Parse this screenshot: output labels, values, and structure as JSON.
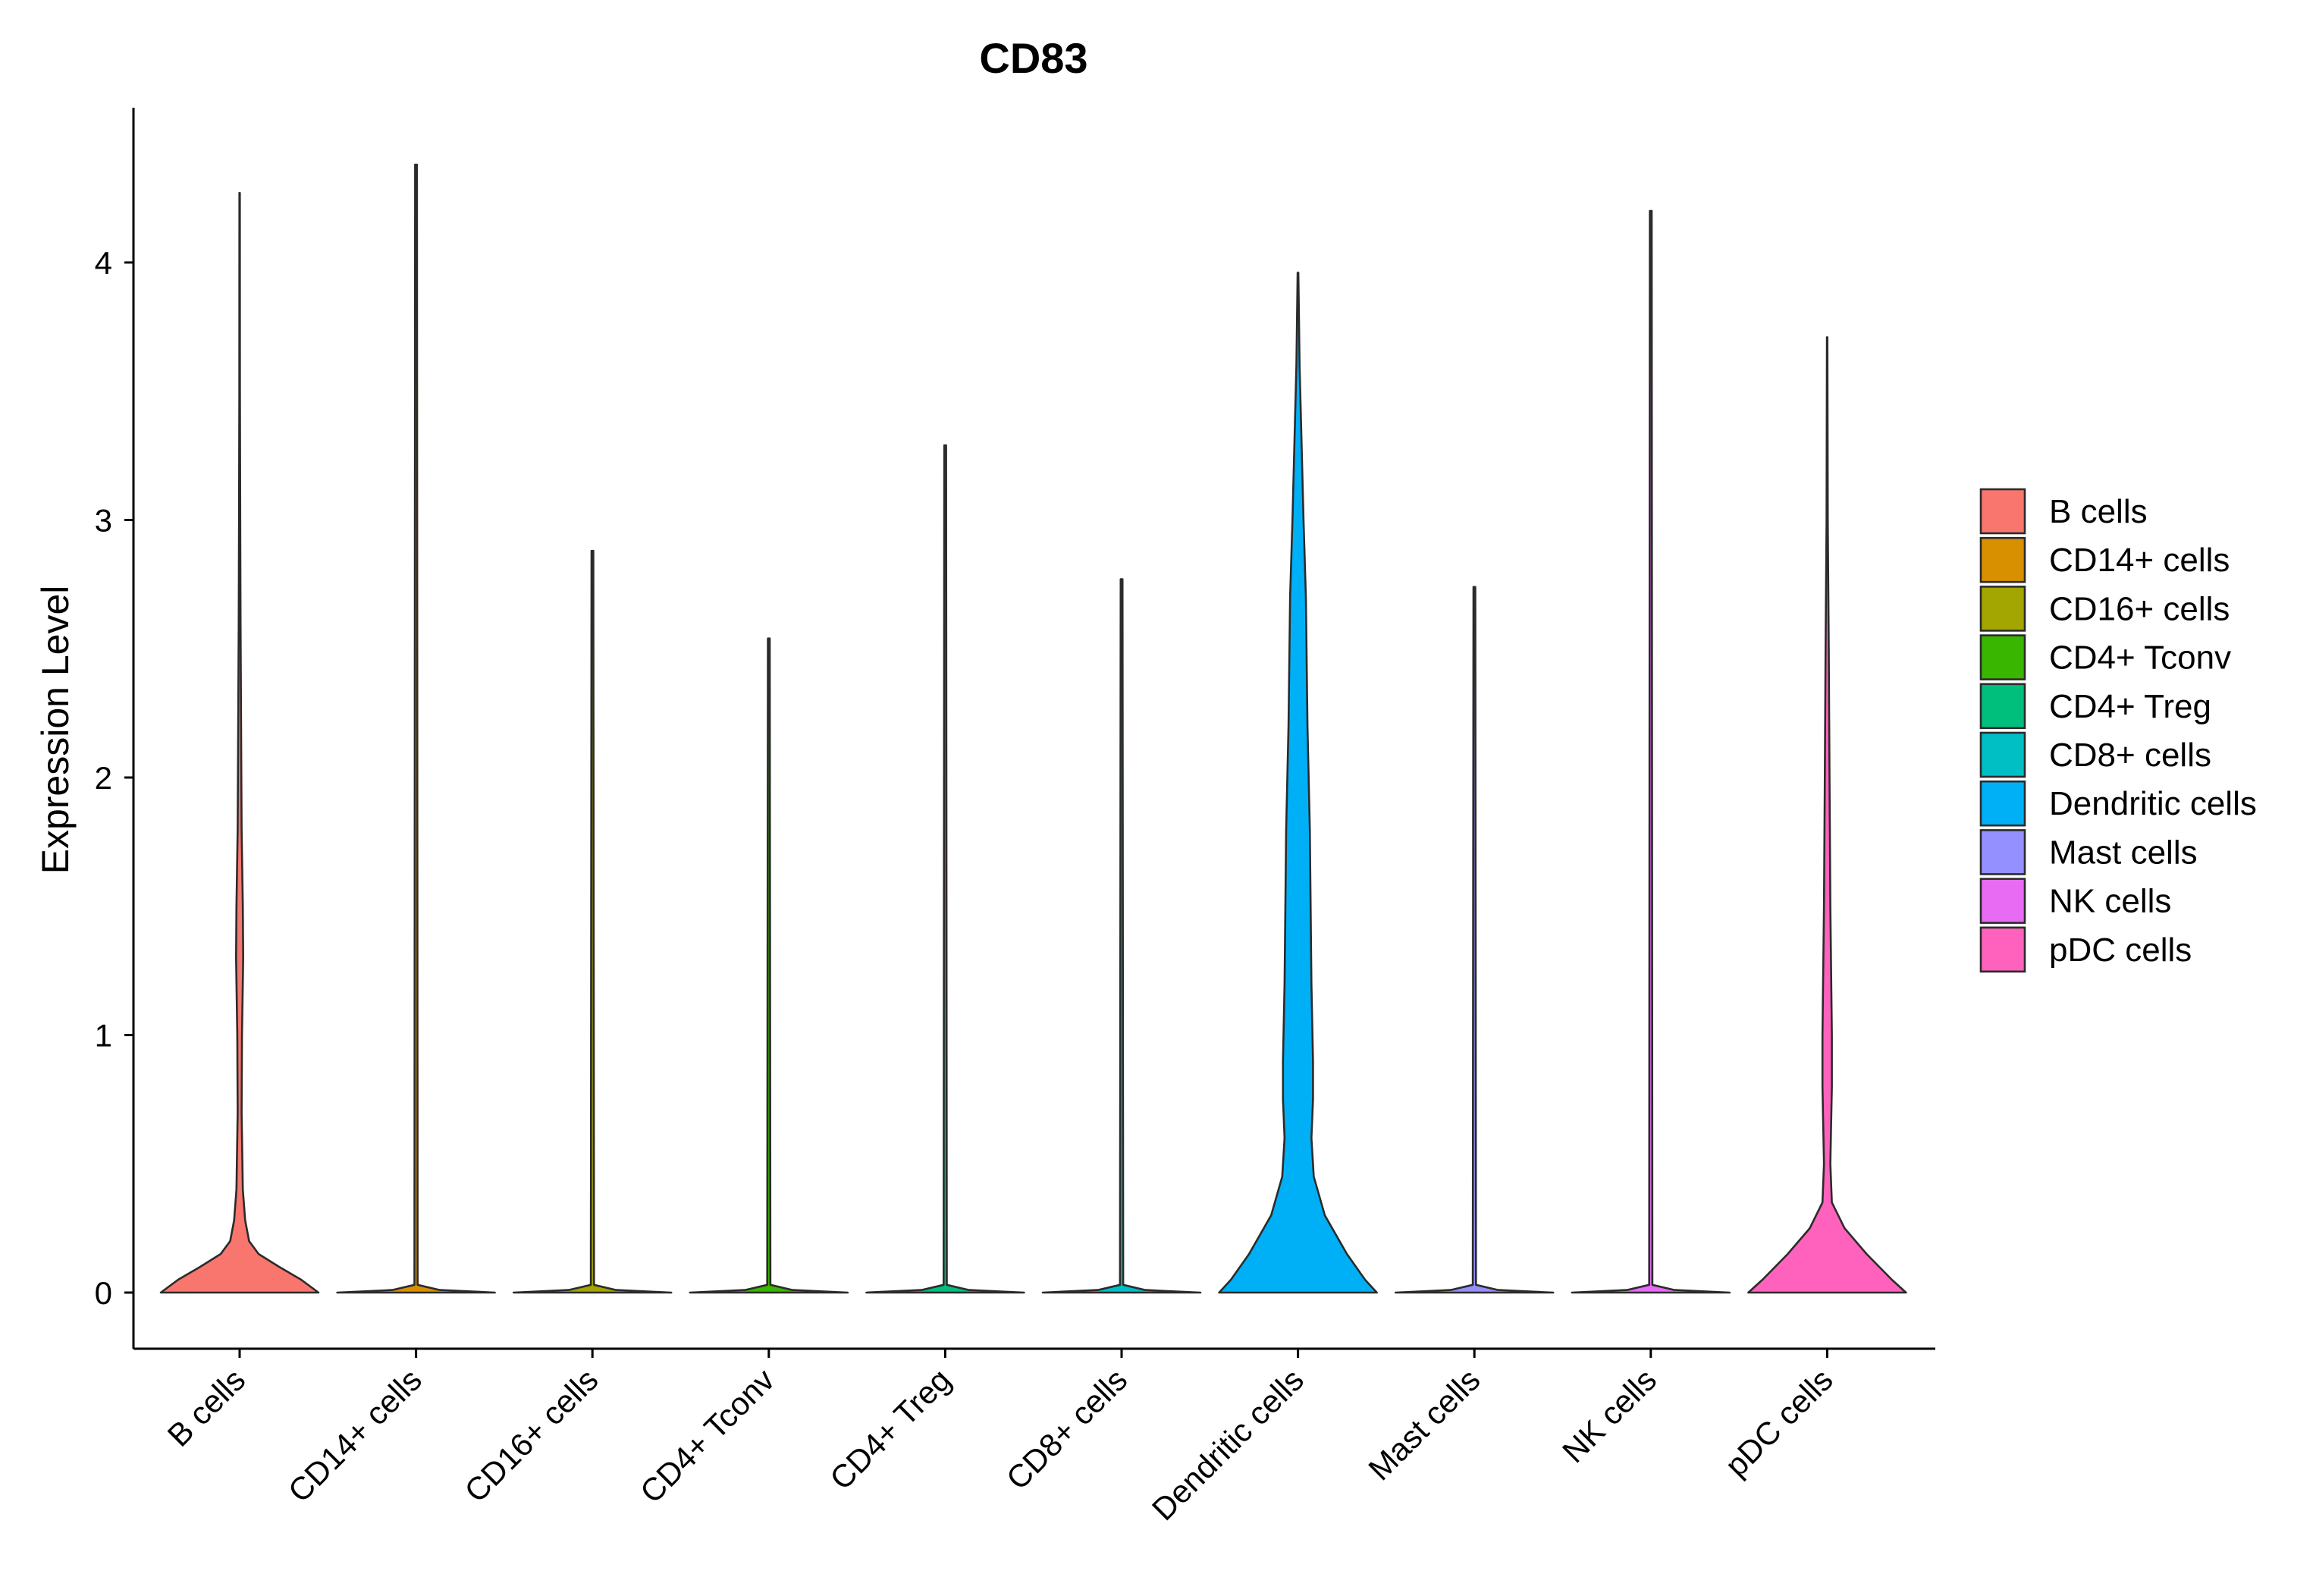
{
  "chart_data": {
    "type": "violin",
    "title": "CD83",
    "xlabel": "",
    "ylabel": "Expression Level",
    "ylim": [
      -0.22,
      4.6
    ],
    "yticks": [
      0,
      1,
      2,
      3,
      4
    ],
    "grid": false,
    "legend_position": "right",
    "categories": [
      "B cells",
      "CD14+ cells",
      "CD16+ cells",
      "CD4+ Tconv",
      "CD4+ Treg",
      "CD8+ cells",
      "Dendritic cells",
      "Mast cells",
      "NK cells",
      "pDC cells"
    ],
    "colors": [
      "#F8766D",
      "#D89000",
      "#A3A500",
      "#39B600",
      "#00BF7D",
      "#00BFC4",
      "#00B0F6",
      "#9590FF",
      "#E76BF3",
      "#FF62BC"
    ],
    "max_values": [
      4.27,
      4.38,
      2.88,
      2.54,
      3.29,
      2.77,
      3.96,
      2.74,
      4.2,
      3.71
    ],
    "density_profiles": [
      [
        [
          0,
          1.0
        ],
        [
          0.05,
          0.78
        ],
        [
          0.1,
          0.5
        ],
        [
          0.15,
          0.24
        ],
        [
          0.2,
          0.12
        ],
        [
          0.28,
          0.07
        ],
        [
          0.4,
          0.04
        ],
        [
          0.7,
          0.025
        ],
        [
          1.0,
          0.03
        ],
        [
          1.3,
          0.045
        ],
        [
          1.5,
          0.04
        ],
        [
          1.8,
          0.025
        ],
        [
          2.2,
          0.018
        ],
        [
          2.6,
          0.012
        ],
        [
          3.0,
          0.008
        ],
        [
          3.5,
          0.004
        ],
        [
          4.27,
          0.003
        ]
      ],
      [
        [
          0,
          1.0
        ],
        [
          0.01,
          0.3
        ],
        [
          0.03,
          0.02
        ],
        [
          4.38,
          0.012
        ]
      ],
      [
        [
          0,
          1.0
        ],
        [
          0.01,
          0.3
        ],
        [
          0.03,
          0.02
        ],
        [
          2.88,
          0.012
        ]
      ],
      [
        [
          0,
          1.0
        ],
        [
          0.01,
          0.3
        ],
        [
          0.03,
          0.02
        ],
        [
          2.54,
          0.012
        ]
      ],
      [
        [
          0,
          1.0
        ],
        [
          0.01,
          0.3
        ],
        [
          0.03,
          0.02
        ],
        [
          3.29,
          0.012
        ]
      ],
      [
        [
          0,
          1.0
        ],
        [
          0.01,
          0.3
        ],
        [
          0.03,
          0.02
        ],
        [
          2.77,
          0.012
        ]
      ],
      [
        [
          0,
          1.0
        ],
        [
          0.05,
          0.85
        ],
        [
          0.15,
          0.62
        ],
        [
          0.3,
          0.34
        ],
        [
          0.45,
          0.2
        ],
        [
          0.6,
          0.17
        ],
        [
          0.75,
          0.19
        ],
        [
          0.9,
          0.19
        ],
        [
          1.2,
          0.17
        ],
        [
          1.8,
          0.15
        ],
        [
          2.2,
          0.12
        ],
        [
          2.7,
          0.1
        ],
        [
          3.0,
          0.07
        ],
        [
          3.3,
          0.045
        ],
        [
          3.6,
          0.02
        ],
        [
          3.96,
          0.005
        ]
      ],
      [
        [
          0,
          1.0
        ],
        [
          0.01,
          0.3
        ],
        [
          0.03,
          0.02
        ],
        [
          2.74,
          0.012
        ]
      ],
      [
        [
          0,
          1.0
        ],
        [
          0.01,
          0.3
        ],
        [
          0.03,
          0.02
        ],
        [
          4.2,
          0.012
        ]
      ],
      [
        [
          0,
          1.0
        ],
        [
          0.05,
          0.82
        ],
        [
          0.15,
          0.5
        ],
        [
          0.25,
          0.22
        ],
        [
          0.35,
          0.06
        ],
        [
          0.5,
          0.04
        ],
        [
          0.8,
          0.06
        ],
        [
          1.0,
          0.06
        ],
        [
          1.5,
          0.04
        ],
        [
          2.0,
          0.03
        ],
        [
          2.5,
          0.02
        ],
        [
          3.0,
          0.008
        ],
        [
          3.71,
          0.003
        ]
      ]
    ]
  }
}
